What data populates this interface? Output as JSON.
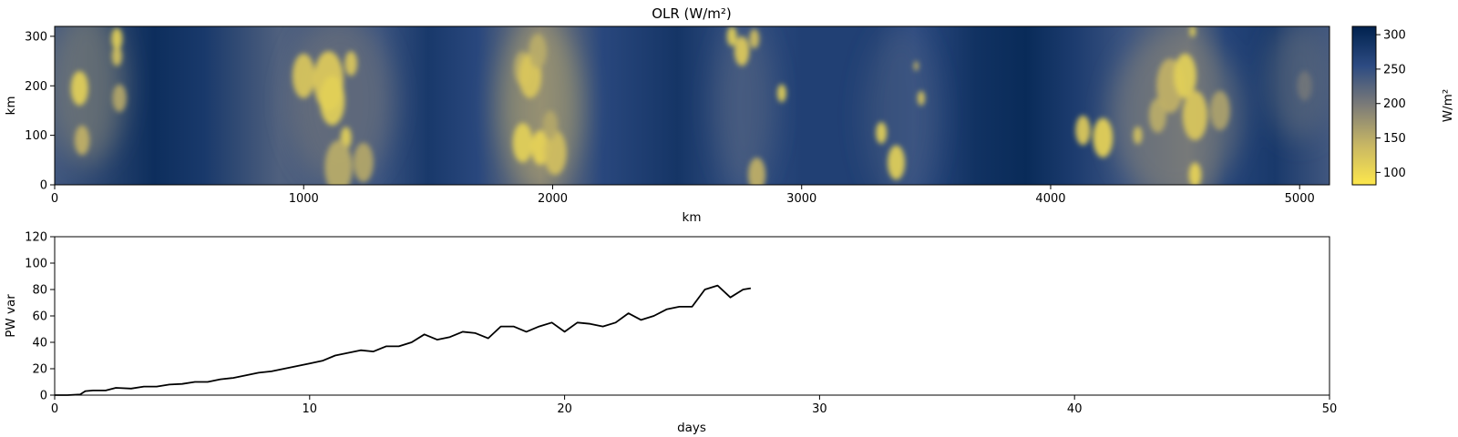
{
  "chart_data": [
    {
      "type": "heatmap",
      "title": "OLR (W/m²)",
      "xlabel": "km",
      "ylabel": "km",
      "xlim": [
        0,
        5120
      ],
      "ylim": [
        0,
        320
      ],
      "x_ticks": [
        0,
        1000,
        2000,
        3000,
        4000,
        5000
      ],
      "y_ticks": [
        0,
        100,
        200,
        300
      ],
      "colorbar": {
        "label": "W/m²",
        "range": [
          82,
          312
        ],
        "ticks": [
          100,
          150,
          200,
          250,
          300
        ],
        "colormap": "cividis (reversed)",
        "low_color": "#fde74c",
        "mid_color": "#7d7c78",
        "high_color": "#00224e"
      },
      "background_bands": [
        {
          "x": 0,
          "olr": 240
        },
        {
          "x": 400,
          "olr": 295
        },
        {
          "x": 600,
          "olr": 280
        },
        {
          "x": 900,
          "olr": 230
        },
        {
          "x": 1300,
          "olr": 245
        },
        {
          "x": 1500,
          "olr": 280
        },
        {
          "x": 1700,
          "olr": 260
        },
        {
          "x": 1950,
          "olr": 200
        },
        {
          "x": 2200,
          "olr": 260
        },
        {
          "x": 2500,
          "olr": 285
        },
        {
          "x": 2750,
          "olr": 250
        },
        {
          "x": 3000,
          "olr": 270
        },
        {
          "x": 3300,
          "olr": 270
        },
        {
          "x": 3450,
          "olr": 255
        },
        {
          "x": 3700,
          "olr": 290
        },
        {
          "x": 3900,
          "olr": 300
        },
        {
          "x": 4100,
          "olr": 275
        },
        {
          "x": 4300,
          "olr": 245
        },
        {
          "x": 4550,
          "olr": 215
        },
        {
          "x": 4700,
          "olr": 265
        },
        {
          "x": 4900,
          "olr": 280
        },
        {
          "x": 5120,
          "olr": 240
        }
      ],
      "haze_patches": [
        {
          "x": 130,
          "y": 200,
          "rx": 150,
          "ry": 160,
          "olr": 185
        },
        {
          "x": 1150,
          "y": 170,
          "rx": 210,
          "ry": 170,
          "olr": 200
        },
        {
          "x": 1950,
          "y": 160,
          "rx": 170,
          "ry": 170,
          "olr": 160
        },
        {
          "x": 2770,
          "y": 160,
          "rx": 120,
          "ry": 170,
          "olr": 225
        },
        {
          "x": 3400,
          "y": 140,
          "rx": 150,
          "ry": 180,
          "olr": 235
        },
        {
          "x": 4500,
          "y": 140,
          "rx": 260,
          "ry": 170,
          "olr": 190
        },
        {
          "x": 5000,
          "y": 210,
          "rx": 130,
          "ry": 120,
          "olr": 215
        }
      ],
      "convective_cells": [
        {
          "x": 100,
          "y": 195,
          "r": 35,
          "olr": 110
        },
        {
          "x": 110,
          "y": 90,
          "r": 30,
          "olr": 145
        },
        {
          "x": 250,
          "y": 295,
          "r": 22,
          "olr": 110
        },
        {
          "x": 250,
          "y": 260,
          "r": 20,
          "olr": 125
        },
        {
          "x": 260,
          "y": 175,
          "r": 28,
          "olr": 155
        },
        {
          "x": 1000,
          "y": 220,
          "r": 45,
          "olr": 120
        },
        {
          "x": 1100,
          "y": 210,
          "r": 60,
          "olr": 115
        },
        {
          "x": 1115,
          "y": 170,
          "r": 50,
          "olr": 110
        },
        {
          "x": 1190,
          "y": 245,
          "r": 25,
          "olr": 120
        },
        {
          "x": 1170,
          "y": 95,
          "r": 22,
          "olr": 110
        },
        {
          "x": 1140,
          "y": 35,
          "r": 55,
          "olr": 150
        },
        {
          "x": 1240,
          "y": 45,
          "r": 40,
          "olr": 155
        },
        {
          "x": 1880,
          "y": 235,
          "r": 35,
          "olr": 150
        },
        {
          "x": 1910,
          "y": 220,
          "r": 45,
          "olr": 120
        },
        {
          "x": 1940,
          "y": 270,
          "r": 35,
          "olr": 150
        },
        {
          "x": 1880,
          "y": 85,
          "r": 40,
          "olr": 110
        },
        {
          "x": 1950,
          "y": 75,
          "r": 35,
          "olr": 105
        },
        {
          "x": 2010,
          "y": 65,
          "r": 45,
          "olr": 130
        },
        {
          "x": 1990,
          "y": 120,
          "r": 30,
          "olr": 155
        },
        {
          "x": 2720,
          "y": 300,
          "r": 20,
          "olr": 110
        },
        {
          "x": 2760,
          "y": 270,
          "r": 30,
          "olr": 115
        },
        {
          "x": 2810,
          "y": 295,
          "r": 20,
          "olr": 130
        },
        {
          "x": 2920,
          "y": 185,
          "r": 18,
          "olr": 110
        },
        {
          "x": 2820,
          "y": 20,
          "r": 35,
          "olr": 145
        },
        {
          "x": 3320,
          "y": 105,
          "r": 22,
          "olr": 110
        },
        {
          "x": 3380,
          "y": 45,
          "r": 35,
          "olr": 110
        },
        {
          "x": 3480,
          "y": 175,
          "r": 15,
          "olr": 120
        },
        {
          "x": 3460,
          "y": 240,
          "r": 10,
          "olr": 140
        },
        {
          "x": 4130,
          "y": 110,
          "r": 30,
          "olr": 115
        },
        {
          "x": 4210,
          "y": 95,
          "r": 40,
          "olr": 105
        },
        {
          "x": 4350,
          "y": 100,
          "r": 18,
          "olr": 125
        },
        {
          "x": 4430,
          "y": 140,
          "r": 35,
          "olr": 150
        },
        {
          "x": 4480,
          "y": 200,
          "r": 55,
          "olr": 145
        },
        {
          "x": 4540,
          "y": 220,
          "r": 45,
          "olr": 110
        },
        {
          "x": 4580,
          "y": 140,
          "r": 50,
          "olr": 120
        },
        {
          "x": 4580,
          "y": 20,
          "r": 25,
          "olr": 105
        },
        {
          "x": 4570,
          "y": 310,
          "r": 12,
          "olr": 110
        },
        {
          "x": 4680,
          "y": 150,
          "r": 40,
          "olr": 160
        },
        {
          "x": 5020,
          "y": 200,
          "r": 30,
          "olr": 205
        }
      ]
    },
    {
      "type": "line",
      "title": "",
      "xlabel": "days",
      "ylabel": "PW var",
      "xlim": [
        0,
        50
      ],
      "ylim": [
        0,
        120
      ],
      "x_ticks": [
        0,
        10,
        20,
        30,
        40,
        50
      ],
      "y_ticks": [
        0,
        20,
        40,
        60,
        80,
        100,
        120
      ],
      "grid": false,
      "series": [
        {
          "color": "#000000",
          "x": [
            0,
            0.5,
            1.0,
            1.2,
            1.5,
            2.0,
            2.4,
            3.0,
            3.5,
            4.0,
            4.5,
            5.0,
            5.5,
            6.0,
            6.5,
            7.0,
            7.5,
            8.0,
            8.5,
            9.0,
            9.5,
            10.0,
            10.5,
            11.0,
            11.5,
            12.0,
            12.5,
            13.0,
            13.5,
            14.0,
            14.5,
            15.0,
            15.5,
            16.0,
            16.5,
            17.0,
            17.5,
            18.0,
            18.5,
            19.0,
            19.5,
            20.0,
            20.5,
            21.0,
            21.5,
            22.0,
            22.5,
            23.0,
            23.5,
            24.0,
            24.5,
            25.0,
            25.5,
            26.0,
            26.5,
            27.0,
            27.3
          ],
          "y": [
            0,
            0,
            0.5,
            3,
            3.5,
            3.5,
            5.5,
            5,
            6.5,
            6.5,
            8,
            8.5,
            10,
            10,
            12,
            13,
            15,
            17,
            18,
            20,
            22,
            24,
            26,
            30,
            32,
            34,
            33,
            37,
            37,
            40,
            46,
            42,
            44,
            48,
            47,
            43,
            52,
            52,
            48,
            52,
            55,
            48,
            55,
            54,
            52,
            55,
            62,
            57,
            60,
            65,
            67,
            67,
            80,
            83,
            74,
            80,
            81
          ]
        }
      ]
    }
  ]
}
